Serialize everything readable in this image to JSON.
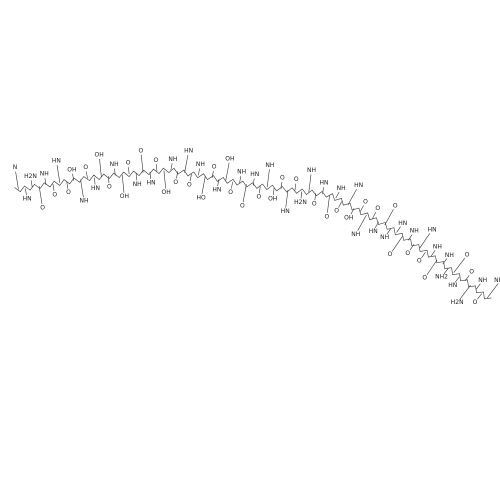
{
  "structure": {
    "labels": [
      "N",
      "HN",
      "H2N",
      "O",
      "NH",
      "O",
      "HN",
      "O",
      "OH",
      "NH",
      "O",
      "HN",
      "OH",
      "O",
      "NH",
      "OH",
      "O",
      "NH",
      "O",
      "HN",
      "O",
      "OH",
      "NH",
      "O",
      "HN",
      "O",
      "NH",
      "HO",
      "O",
      "HN",
      "OH",
      "O",
      "NH",
      "O",
      "HN",
      "O",
      "NH",
      "OH",
      "O",
      "HN",
      "O",
      "H2N",
      "NH",
      "O",
      "HN",
      "O",
      "NH",
      "O",
      "HN",
      "OH",
      "O",
      "NH",
      "O",
      "HN",
      "O",
      "NH",
      "HN",
      "O",
      "NH",
      "O",
      "HN",
      "O",
      "NH",
      "O",
      "NH",
      "NH2",
      "O",
      "HN",
      "O",
      "H2N",
      "NH",
      "O",
      "NH2"
    ]
  }
}
